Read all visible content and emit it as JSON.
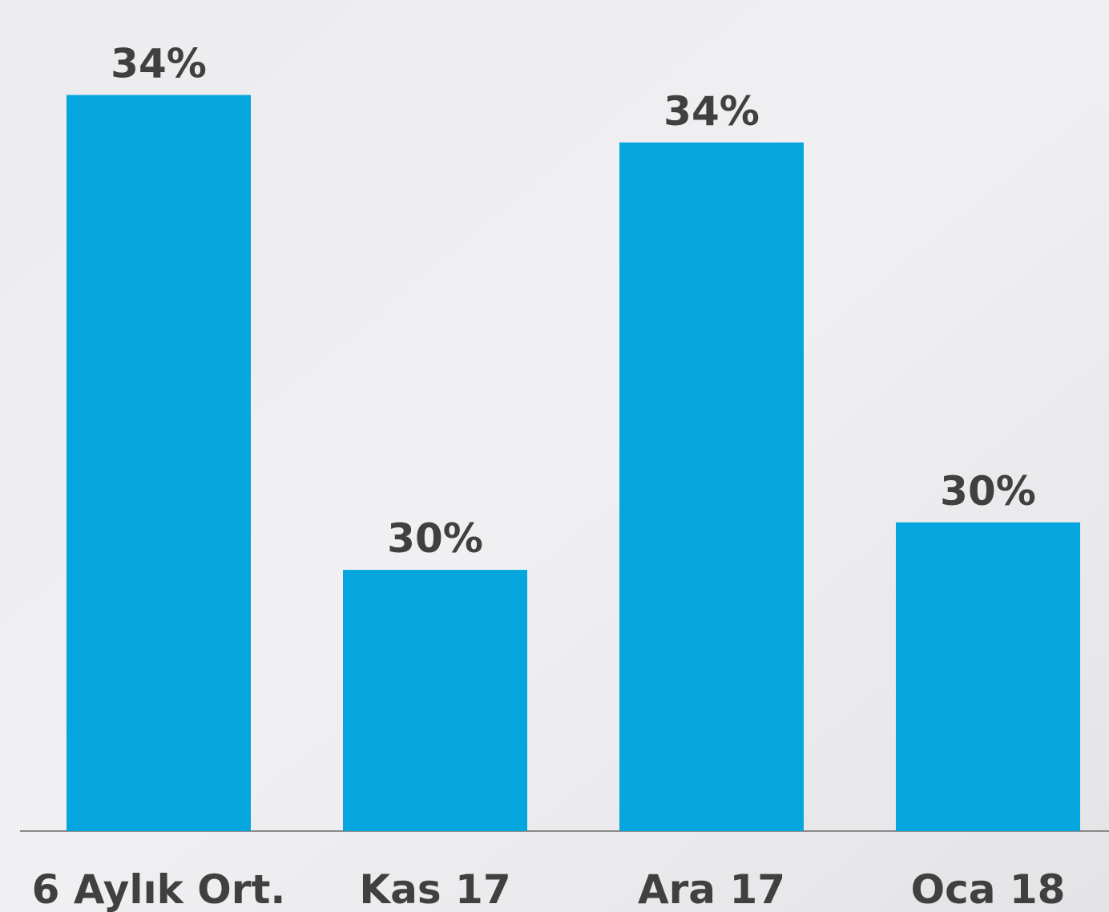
{
  "chart_data": {
    "type": "bar",
    "categories": [
      "6 Aylık Ort.",
      "Kas 17",
      "Ara 17",
      "Oca 18"
    ],
    "values": [
      34.0,
      30.0,
      33.6,
      30.4
    ],
    "value_labels": [
      "34%",
      "30%",
      "34%",
      "30%"
    ],
    "color": "#05a5dd",
    "ylim": [
      27.8,
      34.8
    ]
  }
}
